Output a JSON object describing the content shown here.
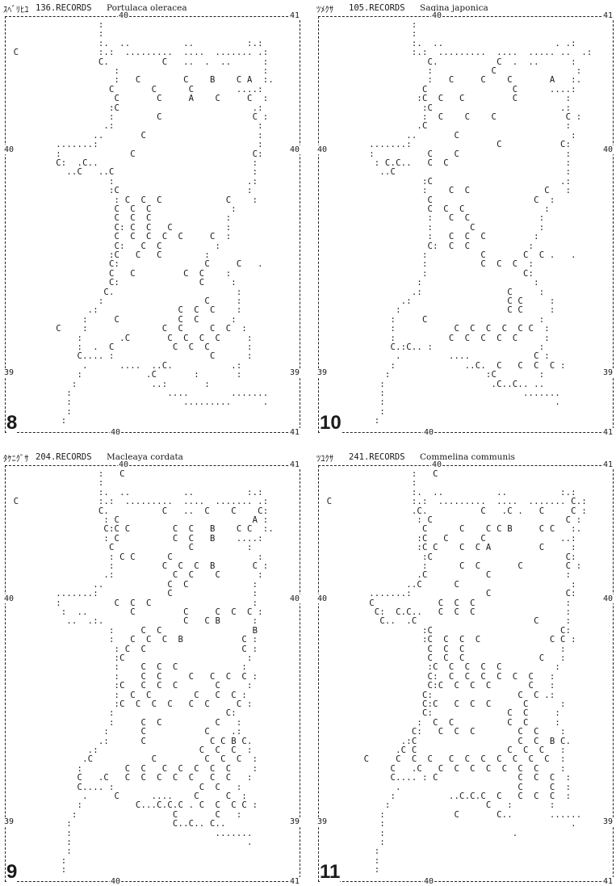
{
  "panels": [
    {
      "number": "8",
      "header": {
        "code": "ｽﾍﾞﾘﾋﾕ",
        "records": "136.RECORDS",
        "species": "Portulaca oleracea"
      },
      "labels": {
        "top": "40",
        "top_right": "41",
        "left": "40",
        "right": "40",
        "left_lower": "39",
        "right_lower": "39",
        "bottom": "40",
        "bottom_right": "41"
      },
      "rows": [
        "                 :",
        "                 :",
        "                 :.  ..          ..          :.:",
        " C               :.:  .........  ....  ....... .:",
        "                 C.          C   ..  .  ..      :",
        "                    :                           :",
        "                    :   C        C    B    C A  :.",
        "                   C       C      C        ....:",
        "                    C       C     A    C     C  :",
        "                   :C                         .:",
        "                   :        C                 C :",
        "                  .:                           :",
        "                ..       C                     :",
        "         .......:                              :",
        "         :             C                      C:",
        "         C:  .C..                             :",
        "           ..C   ..C                          :",
        "                   :                         .:",
        "                   :C                        :",
        "                    : C  C  C            C    :",
        "                    C  C  C               :",
        "                    C  C  C              :",
        "                    C: C  C   C          :",
        "                    C  C  C  C  C     C  :",
        "                    C:   C  C          :",
        "                   :C   C   C        :",
        "                   C:                C     C   .",
        "                   C   C         C  C    :",
        "                   C:               C     :",
        "                  C.                       :",
        "                 :                   C     :",
        "               .:               C  C  C    :",
        "              :     C           C  C      :",
        "         C    :              C  C     C  C  :",
        "             :       .C       C  C  C  C     :",
        "             :  .  C           C  C  C       :",
        "             C.... :                  C      :",
        "              .      ....  ..C.           .:",
        "             :            .C       :       :",
        "            :              ..:       :",
        "           :                  ....        .......",
        "           :                     .........      .",
        "           :",
        "          :"
      ]
    },
    {
      "number": "10",
      "header": {
        "code": "ﾂﾒｸｻ",
        "records": "105.RECORDS",
        "species": "Sagina japonica"
      },
      "labels": {
        "top": "40",
        "top_right": "41",
        "left": "40",
        "right": "40",
        "left_lower": "39",
        "right_lower": "39",
        "bottom": "40",
        "bottom_right": "41"
      },
      "rows": [
        "                 :",
        "                 :",
        "                 :.  ..                     . .:",
        "                 :.:  .........  ....  ..... ..  .:",
        "                    C.           C  .  ..      :",
        "                    :           C               :",
        "                    :   C     C    C       A   :.",
        "                   C                C      ....:",
        "                  :C  C   C         C         :",
        "                   :C                        .:",
        "                   :  C    C    C             C :",
        "                  .C                          :",
        "                ..       C                     :",
        "         .......:                C           C:",
        "         :          C    C                    :",
        "          : C.C..   C  C                      :",
        "           ..C                                :",
        "                   :C                        .:",
        "                   :    C  C              C   :",
        "                    C                   C  :",
        "                    C  C  C               :",
        "                    :   C  C             :",
        "                    :       C            :",
        "                    :   C  C  C         :",
        "                    C:  C  C           :",
        "                   :          C       C  C .   .",
        "                   :          C  C  C  :",
        "                   :                  C:",
        "                  :                     :",
        "                 .:                C     :",
        "               .:                  C C     :",
        "              :                    C C     :",
        "             :     C                     :",
        "             :           C  C  C  C  C C  :",
        "             :          C  C  C  C  C     :",
        "             C.:C.. :                    :",
        "              .         ....            C :",
        "             :             ..C.  C   C  C  C :",
        "            :                  :C        :",
        "           :                    .C..C.. ..",
        "           :                          .......",
        "           :                                .",
        "           :",
        "          :"
      ]
    },
    {
      "number": "9",
      "header": {
        "code": "ﾀｹﾆｸﾞｻ",
        "records": "204.RECORDS",
        "species": "Macleaya cordata"
      },
      "labels": {
        "top": "40",
        "top_right": "41",
        "left": "40",
        "right": "40",
        "left_lower": "39",
        "right_lower": "39",
        "bottom": "40",
        "bottom_right": "41"
      },
      "rows": [
        "                 :   C",
        "                 :",
        "                 :.  ..          ..          :.:",
        " C               :.:  .........  ....  ....... .:",
        "                 C.          C   ..  C    C    C:",
        "                  : C                         A :",
        "                  C:C C        C  C   B    C C  :.",
        "                  : C          C  C   B    ....:",
        "                   C              C          :",
        "                   : C C      C                :",
        "                   :         C  C  C  B       C :",
        "                  .:           C  C    C       :",
        "                ..            C  C            :",
        "         .......:             C               :",
        "         :          C  C  C                   :",
        "          :  ..        C         C     C  C  C :",
        "           ..  .:.               C   C B      :",
        "                   :     C  C                 B",
        "                   :   C  C  C  B           C :",
        "                    : C  C                  C :",
        "                    :C                       :",
        "                    :    C  C  C            :",
        "                    :    C  C     C   C  C  C :",
        "                    :C   C  C  C       C     :",
        "                    :  C  C        C   C  C :",
        "                    :C  C  C  C   C  C     C :",
        "                   :                     C:",
        "                   :     C  C          C   :",
        "                  :      C           C    .:",
        "                 .:      C            C C B C.",
        "               .:                   C  C  C  :",
        "              .C           C         C  C  C  :",
        "             :        C  C   C  C  C  C  C    :",
        "             C   .C   C  C  C  C  C   C  C   :",
        "             C.... :                C  C   :",
        "              .     C      ....    C     C  :",
        "             :          C...C.C.C . C  C  C C :",
        "            :                  C       C   :",
        "           :                   C..C.. C..",
        "           :                           .......",
        "           :                                 .",
        "           :",
        "          :",
        "          :"
      ]
    },
    {
      "number": "11",
      "header": {
        "code": "ﾂﾕｸｻ",
        "records": "241.RECORDS",
        "species": "Commelina communis"
      },
      "labels": {
        "top": "40",
        "top_right": "41",
        "left": "40",
        "right": "40",
        "left_lower": "39",
        "right_lower": "39",
        "bottom": "40",
        "bottom_right": "41"
      },
      "rows": [
        "                 :   C",
        "                 :",
        "                 :.  ..          ..          :.:",
        " C               :.:  .........  ....  ....... C.:",
        "                 .C.          C   .C .   C     C :",
        "                  : C                         C :",
        "                   C      C    C C B     C C   :.",
        "                  :C   C      C              ..:",
        "                  :C C    C  C A         C     :",
        "                   :C                         C:",
        "                   :      C  C       C        C :",
        "                  .C           C              :",
        "                ..C      C                     :",
        "         .......:              C              C:",
        "         C            C  C  C                 :",
        "          C:  C.C..   C  C  C                 :",
        "           C..  .C                      C     :",
        "                   :C                        C:",
        "                   :C  C  C  C             C C :",
        "                    C  C  C                  :",
        "                    C  C  C              C   :",
        "                    :C  C  C  C  C          :",
        "                    C:  C  C  C  C  C  C   :",
        "                    C:C  C  C  C       C   :",
        "                   C:                C  C .:",
        "                   C:C   C  C  C      C      :",
        "                   C:              C  C     :",
        "                  :  C  C          C  C     :",
        "                 C:   C  C  C        C  C    :",
        "               .:C                   C  C  B C.",
        "              .C C                 C  C  C   :",
        "        C     C  C  C   C  C  C  C  C  C  C  :",
        "             C   .C   C  C  C  C  C  C  C    :",
        "             C.... : C               C  C  C  :",
        "              .                      C     C  :",
        "             :          ..C.C.C  C   C  C  C  :",
        "            :                  C   :       :",
        "           :             C       C..       ......",
        "           :                                   .",
        "           :                        .",
        "           :",
        "          :",
        "          :",
        "          :"
      ]
    }
  ]
}
